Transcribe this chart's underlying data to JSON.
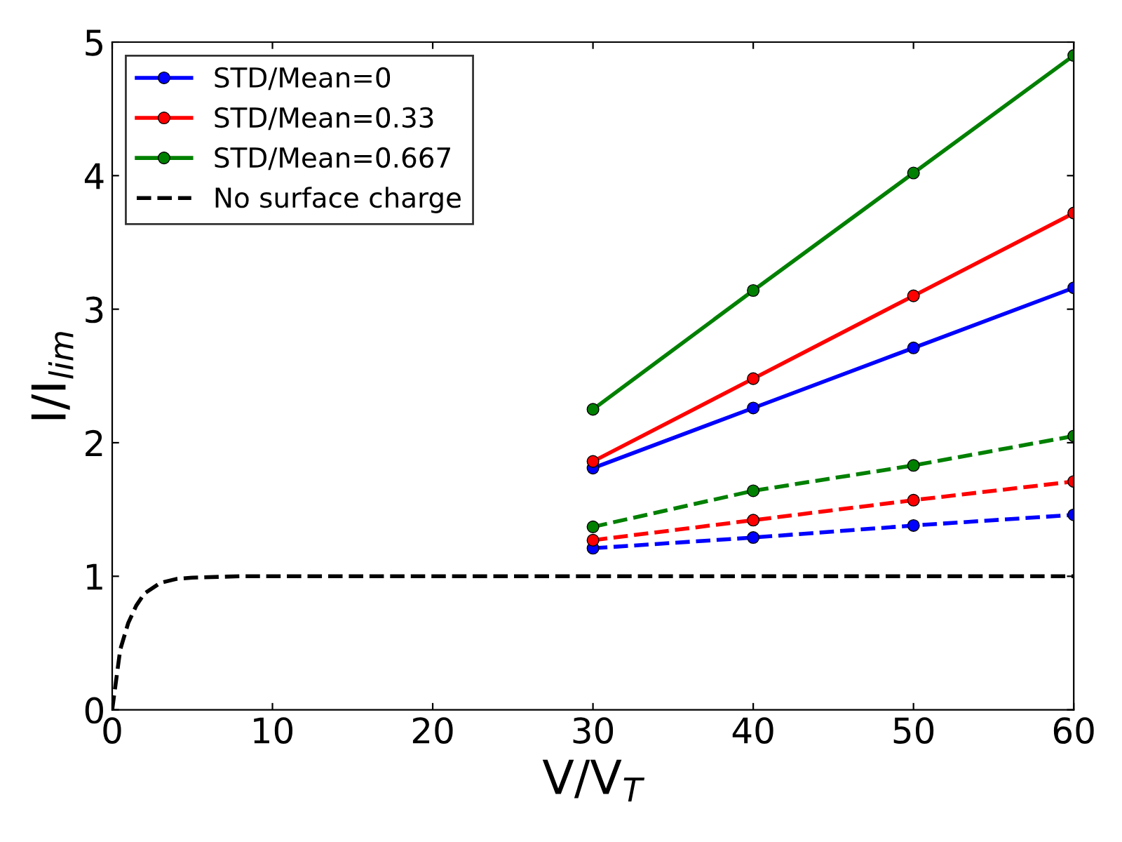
{
  "chart_data": {
    "type": "line",
    "xlabel": "V/V$_{T}$",
    "ylabel": "I/I$_{lim}$",
    "xlim": [
      0,
      60
    ],
    "ylim": [
      0,
      5
    ],
    "xticks": [
      0,
      10,
      20,
      30,
      40,
      50,
      60
    ],
    "yticks": [
      0,
      1,
      2,
      3,
      4,
      5
    ],
    "grid": false,
    "legend": "top left",
    "marker": "circle",
    "series": [
      {
        "name": "STD/Mean=0",
        "color": "#0000ff",
        "x": [
          30,
          40,
          50,
          60
        ],
        "values": [
          1.81,
          2.26,
          2.71,
          3.16
        ],
        "line_style": "solid"
      },
      {
        "name": "STD/Mean=0.33",
        "color": "#ff0000",
        "x": [
          30,
          40,
          50,
          60
        ],
        "values": [
          1.86,
          2.48,
          3.1,
          3.72
        ],
        "line_style": "solid"
      },
      {
        "name": "STD/Mean=0.667",
        "color": "#008000",
        "x": [
          30,
          40,
          50,
          60
        ],
        "values": [
          2.25,
          3.14,
          4.02,
          4.9
        ],
        "line_style": "solid"
      },
      {
        "name": "No surface charge",
        "color": "#000000",
        "x": [
          0,
          0.5,
          1,
          1.5,
          2,
          3,
          4,
          5,
          8,
          60
        ],
        "values": [
          0,
          0.45,
          0.65,
          0.78,
          0.87,
          0.95,
          0.98,
          0.99,
          1.0,
          1.0
        ],
        "line_style": "dashed",
        "marker": "none"
      },
      {
        "color": "#0000ff",
        "x": [
          30,
          40,
          50,
          60
        ],
        "values": [
          1.21,
          1.29,
          1.38,
          1.46
        ],
        "line_style": "dashed"
      },
      {
        "color": "#ff0000",
        "x": [
          30,
          40,
          50,
          60
        ],
        "values": [
          1.27,
          1.42,
          1.57,
          1.71
        ],
        "line_style": "dashed"
      },
      {
        "color": "#008000",
        "x": [
          30,
          40,
          50,
          60
        ],
        "values": [
          1.37,
          1.64,
          1.83,
          2.05
        ],
        "line_style": "dashed"
      }
    ]
  }
}
